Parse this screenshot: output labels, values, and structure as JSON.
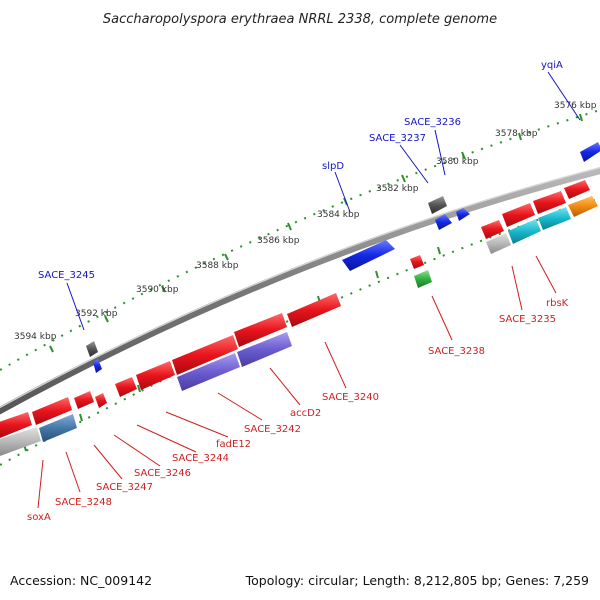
{
  "title": "Saccharopolyspora erythraea NRRL 2338, complete genome",
  "footer": {
    "accession": "Accession: NC_009142",
    "summary": "Topology: circular; Length: 8,212,805 bp; Genes: 7,259"
  },
  "kbp_ticks": [
    "3576 kbp",
    "3578 kbp",
    "3580 kbp",
    "3582 kbp",
    "3584 kbp",
    "3586 kbp",
    "3588 kbp",
    "3590 kbp",
    "3592 kbp",
    "3594 kbp"
  ],
  "forward_strand_labels": [
    "yqiA",
    "SACE_3236",
    "SACE_3237",
    "slpD",
    "SACE_3245"
  ],
  "reverse_strand_labels": [
    "rbsK",
    "SACE_3235",
    "SACE_3238",
    "SACE_3240",
    "accD2",
    "SACE_3242",
    "fadE12",
    "SACE_3244",
    "SACE_3246",
    "SACE_3247",
    "SACE_3248",
    "soxA"
  ],
  "colors": {
    "forward_label": "#1414c8",
    "reverse_label": "#d21e1e",
    "backbone": "#777777",
    "tick_dots": "#2f8f2f",
    "gene_red": "#e8141c",
    "gene_blue": "#1428e6",
    "gene_purple": "#6b5cd0",
    "gene_gray": "#b8b8b8",
    "gene_cyan": "#18b8cc",
    "gene_steel": "#4478aa",
    "gene_orange": "#f08a10",
    "gene_green": "#30b040",
    "gene_darkgray": "#555555"
  }
}
